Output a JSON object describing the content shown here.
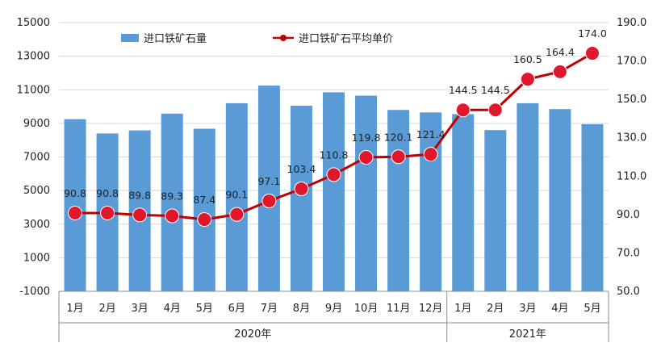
{
  "chart_data": {
    "type": "bar",
    "categories": [
      "1月",
      "2月",
      "3月",
      "4月",
      "5月",
      "6月",
      "7月",
      "8月",
      "9月",
      "10月",
      "11月",
      "12月",
      "1月",
      "2月",
      "3月",
      "4月",
      "5月"
    ],
    "groups": [
      {
        "label": "2020年",
        "count": 12
      },
      {
        "label": "2021年",
        "count": 5
      }
    ],
    "series": [
      {
        "name": "进口铁矿石量",
        "type": "bar",
        "axis": "left",
        "color": "#5b9bd5",
        "values": [
          9250,
          8400,
          8580,
          9580,
          8680,
          10200,
          11250,
          10050,
          10850,
          10650,
          9800,
          9650,
          9550,
          8600,
          10200,
          9850,
          8950
        ]
      },
      {
        "name": "进口铁矿石平均单价",
        "type": "line",
        "axis": "right",
        "color": "#c00000",
        "values": [
          90.8,
          90.8,
          89.8,
          89.3,
          87.4,
          90.1,
          97.1,
          103.4,
          110.8,
          119.8,
          120.1,
          121.4,
          144.5,
          144.5,
          160.5,
          164.4,
          174.0
        ],
        "labels": [
          "90.8",
          "90.8",
          "89.8",
          "89.3",
          "87.4",
          "90.1",
          "97.1",
          "103.4",
          "110.8",
          "119.8",
          "120.1",
          "121.4",
          "144.5",
          "144.5",
          "160.5",
          "164.4",
          "174.0"
        ]
      }
    ],
    "y_left": {
      "range": [
        -1000,
        15000
      ],
      "ticks": [
        -1000,
        1000,
        3000,
        5000,
        7000,
        9000,
        11000,
        13000,
        15000
      ],
      "tick_labels": [
        "-1000",
        "1000",
        "3000",
        "5000",
        "7000",
        "9000",
        "11000",
        "13000",
        "15000"
      ]
    },
    "y_right": {
      "range": [
        50,
        190
      ],
      "ticks": [
        50,
        70,
        90,
        110,
        130,
        150,
        170,
        190
      ],
      "tick_labels": [
        "50.0",
        "70.0",
        "90.0",
        "110.0",
        "130.0",
        "150.0",
        "170.0",
        "190.0"
      ]
    },
    "grid": true,
    "legend_position": "top-left"
  }
}
